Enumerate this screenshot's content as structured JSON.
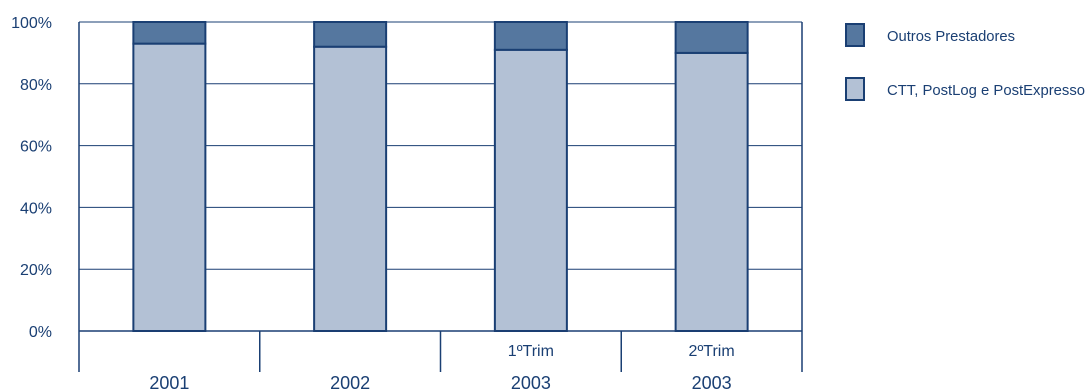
{
  "chart_data": {
    "type": "bar",
    "stacked": true,
    "percent": true,
    "categories": [
      {
        "label": "2001",
        "sublabel": ""
      },
      {
        "label": "2002",
        "sublabel": ""
      },
      {
        "label": "2003",
        "sublabel": "1ºTrim"
      },
      {
        "label": "2003",
        "sublabel": "2ºTrim"
      }
    ],
    "series": [
      {
        "name": "CTT, PostLog e PostExpresso",
        "values": [
          93,
          92,
          91,
          90
        ],
        "color": "#b3c1d5"
      },
      {
        "name": "Outros Prestadores",
        "values": [
          7,
          8,
          9,
          10
        ],
        "color": "#55779f"
      }
    ],
    "y_ticks": [
      "0%",
      "20%",
      "40%",
      "60%",
      "80%",
      "100%"
    ],
    "ylim": [
      0,
      100
    ],
    "grid": true,
    "legend_position": "right",
    "colors": {
      "axis": "#1a3f73",
      "text": "#1a3f73"
    }
  }
}
